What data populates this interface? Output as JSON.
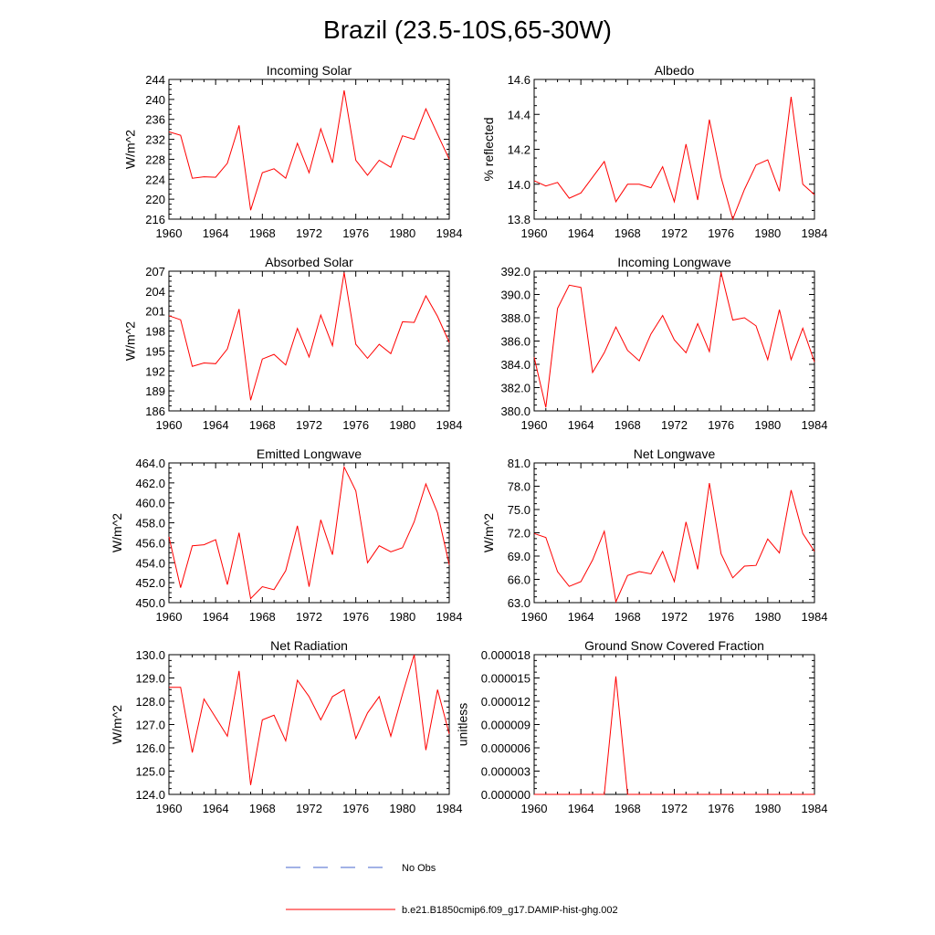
{
  "figure": {
    "title": "Brazil (23.5-10S,65-30W)",
    "legend": [
      {
        "label": "No Obs",
        "color": "#4466cc",
        "style": "dashed"
      },
      {
        "label": "b.e21.B1850cmip6.f09_g17.DAMIP-hist-ghg.002",
        "color": "#ff0000",
        "style": "solid"
      }
    ]
  },
  "chart_data": [
    {
      "type": "line",
      "title": "Incoming Solar",
      "ylabel": "W/m^2",
      "xlim": [
        1960,
        1984
      ],
      "ylim": [
        216,
        244
      ],
      "xticks": [
        "1960",
        "1964",
        "1968",
        "1972",
        "1976",
        "1980",
        "1984"
      ],
      "yticks": [
        "216",
        "220",
        "224",
        "228",
        "232",
        "236",
        "240",
        "244"
      ],
      "color": "#ff0000",
      "x": [
        1960,
        1961,
        1962,
        1963,
        1964,
        1965,
        1966,
        1967,
        1968,
        1969,
        1970,
        1971,
        1972,
        1973,
        1974,
        1975,
        1976,
        1977,
        1978,
        1979,
        1980,
        1981,
        1982,
        1983,
        1984
      ],
      "y": [
        233.5,
        232.8,
        224.2,
        224.5,
        224.4,
        227.2,
        234.8,
        217.8,
        225.3,
        226.1,
        224.2,
        231.2,
        225.3,
        234.1,
        227.3,
        241.8,
        227.8,
        224.8,
        227.8,
        226.4,
        232.7,
        232.0,
        238.1,
        233.0,
        228.0
      ]
    },
    {
      "type": "line",
      "title": "Albedo",
      "ylabel": "% reflected",
      "xlim": [
        1960,
        1984
      ],
      "ylim": [
        13.8,
        14.6
      ],
      "xticks": [
        "1960",
        "1964",
        "1968",
        "1972",
        "1976",
        "1980",
        "1984"
      ],
      "yticks": [
        "13.8",
        "14.0",
        "14.2",
        "14.4",
        "14.6"
      ],
      "color": "#ff0000",
      "x": [
        1960,
        1961,
        1962,
        1963,
        1964,
        1965,
        1966,
        1967,
        1968,
        1969,
        1970,
        1971,
        1972,
        1973,
        1974,
        1975,
        1976,
        1977,
        1978,
        1979,
        1980,
        1981,
        1982,
        1983,
        1984
      ],
      "y": [
        14.02,
        13.99,
        14.01,
        13.92,
        13.95,
        14.04,
        14.13,
        13.9,
        14.0,
        14.0,
        13.98,
        14.1,
        13.9,
        14.23,
        13.91,
        14.37,
        14.04,
        13.8,
        13.97,
        14.11,
        14.14,
        13.96,
        14.5,
        14.0,
        13.94
      ]
    },
    {
      "type": "line",
      "title": "Absorbed Solar",
      "ylabel": "W/m^2",
      "xlim": [
        1960,
        1984
      ],
      "ylim": [
        186,
        207
      ],
      "xticks": [
        "1960",
        "1964",
        "1968",
        "1972",
        "1976",
        "1980",
        "1984"
      ],
      "yticks": [
        "186",
        "189",
        "192",
        "195",
        "198",
        "201",
        "204",
        "207"
      ],
      "color": "#ff0000",
      "x": [
        1960,
        1961,
        1962,
        1963,
        1964,
        1965,
        1966,
        1967,
        1968,
        1969,
        1970,
        1971,
        1972,
        1973,
        1974,
        1975,
        1976,
        1977,
        1978,
        1979,
        1980,
        1981,
        1982,
        1983,
        1984
      ],
      "y": [
        200.3,
        199.7,
        192.7,
        193.2,
        193.1,
        195.3,
        201.3,
        187.6,
        193.8,
        194.5,
        192.9,
        198.4,
        194.1,
        200.4,
        195.8,
        206.8,
        196.0,
        193.9,
        196.0,
        194.6,
        199.4,
        199.3,
        203.3,
        200.2,
        196.3
      ]
    },
    {
      "type": "line",
      "title": "Incoming Longwave",
      "ylabel": "",
      "xlim": [
        1960,
        1984
      ],
      "ylim": [
        380.0,
        392.0
      ],
      "xticks": [
        "1960",
        "1964",
        "1968",
        "1972",
        "1976",
        "1980",
        "1984"
      ],
      "yticks": [
        "380.0",
        "382.0",
        "384.0",
        "386.0",
        "388.0",
        "390.0",
        "392.0"
      ],
      "color": "#ff0000",
      "x": [
        1960,
        1961,
        1962,
        1963,
        1964,
        1965,
        1966,
        1967,
        1968,
        1969,
        1970,
        1971,
        1972,
        1973,
        1974,
        1975,
        1976,
        1977,
        1978,
        1979,
        1980,
        1981,
        1982,
        1983,
        1984
      ],
      "y": [
        384.6,
        380.3,
        388.8,
        390.8,
        390.6,
        383.3,
        385.0,
        387.2,
        385.2,
        384.3,
        386.6,
        388.2,
        386.1,
        385.0,
        387.5,
        385.1,
        391.9,
        387.8,
        388.0,
        387.3,
        384.4,
        388.7,
        384.4,
        387.1,
        384.2
      ]
    },
    {
      "type": "line",
      "title": "Emitted Longwave",
      "ylabel": "W/m^2",
      "xlim": [
        1960,
        1984
      ],
      "ylim": [
        450.0,
        464.0
      ],
      "xticks": [
        "1960",
        "1964",
        "1968",
        "1972",
        "1976",
        "1980",
        "1984"
      ],
      "yticks": [
        "450.0",
        "452.0",
        "454.0",
        "456.0",
        "458.0",
        "460.0",
        "462.0",
        "464.0"
      ],
      "color": "#ff0000",
      "x": [
        1960,
        1961,
        1962,
        1963,
        1964,
        1965,
        1966,
        1967,
        1968,
        1969,
        1970,
        1971,
        1972,
        1973,
        1974,
        1975,
        1976,
        1977,
        1978,
        1979,
        1980,
        1981,
        1982,
        1983,
        1984
      ],
      "y": [
        456.6,
        451.5,
        455.7,
        455.8,
        456.3,
        451.8,
        457.0,
        450.4,
        451.6,
        451.3,
        453.2,
        457.7,
        451.6,
        458.3,
        454.8,
        463.6,
        461.2,
        454.0,
        455.7,
        455.1,
        455.5,
        458.1,
        461.9,
        459.0,
        453.8
      ]
    },
    {
      "type": "line",
      "title": "Net Longwave",
      "ylabel": "W/m^2",
      "xlim": [
        1960,
        1984
      ],
      "ylim": [
        63.0,
        81.0
      ],
      "xticks": [
        "1960",
        "1964",
        "1968",
        "1972",
        "1976",
        "1980",
        "1984"
      ],
      "yticks": [
        "63.0",
        "66.0",
        "69.0",
        "72.0",
        "75.0",
        "78.0",
        "81.0"
      ],
      "color": "#ff0000",
      "x": [
        1960,
        1961,
        1962,
        1963,
        1964,
        1965,
        1966,
        1967,
        1968,
        1969,
        1970,
        1971,
        1972,
        1973,
        1974,
        1975,
        1976,
        1977,
        1978,
        1979,
        1980,
        1981,
        1982,
        1983,
        1984
      ],
      "y": [
        71.9,
        71.4,
        67.0,
        65.1,
        65.7,
        68.5,
        72.2,
        63.1,
        66.5,
        67.0,
        66.7,
        69.6,
        65.7,
        73.4,
        67.3,
        78.4,
        69.3,
        66.2,
        67.7,
        67.8,
        71.2,
        69.4,
        77.5,
        71.9,
        69.6
      ]
    },
    {
      "type": "line",
      "title": "Net Radiation",
      "ylabel": "W/m^2",
      "xlim": [
        1960,
        1984
      ],
      "ylim": [
        124.0,
        130.0
      ],
      "xticks": [
        "1960",
        "1964",
        "1968",
        "1972",
        "1976",
        "1980",
        "1984"
      ],
      "yticks": [
        "124.0",
        "125.0",
        "126.0",
        "127.0",
        "128.0",
        "129.0",
        "130.0"
      ],
      "color": "#ff0000",
      "x": [
        1960,
        1961,
        1962,
        1963,
        1964,
        1965,
        1966,
        1967,
        1968,
        1969,
        1970,
        1971,
        1972,
        1973,
        1974,
        1975,
        1976,
        1977,
        1978,
        1979,
        1980,
        1981,
        1982,
        1983,
        1984
      ],
      "y": [
        128.6,
        128.6,
        125.8,
        128.1,
        127.3,
        126.5,
        129.3,
        124.4,
        127.2,
        127.4,
        126.3,
        128.9,
        128.2,
        127.2,
        128.2,
        128.5,
        126.4,
        127.5,
        128.2,
        126.5,
        128.3,
        130.0,
        125.9,
        128.5,
        126.6
      ]
    },
    {
      "type": "line",
      "title": "Ground Snow Covered Fraction",
      "ylabel": "unitless",
      "xlim": [
        1960,
        1984
      ],
      "ylim": [
        0,
        1.8e-05
      ],
      "xticks": [
        "1960",
        "1964",
        "1968",
        "1972",
        "1976",
        "1980",
        "1984"
      ],
      "yticks": [
        "0.000000",
        "0.000003",
        "0.000006",
        "0.000009",
        "0.000012",
        "0.000015",
        "0.000018"
      ],
      "color": "#ff0000",
      "x": [
        1960,
        1961,
        1962,
        1963,
        1964,
        1965,
        1966,
        1967,
        1968,
        1969,
        1970,
        1971,
        1972,
        1973,
        1974,
        1975,
        1976,
        1977,
        1978,
        1979,
        1980,
        1981,
        1982,
        1983,
        1984
      ],
      "y": [
        0,
        0,
        0,
        0,
        0,
        0,
        0,
        1.52e-05,
        0,
        0,
        0,
        0,
        0,
        0,
        0,
        0,
        0,
        0,
        0,
        0,
        0,
        0,
        0,
        0,
        0
      ]
    }
  ]
}
